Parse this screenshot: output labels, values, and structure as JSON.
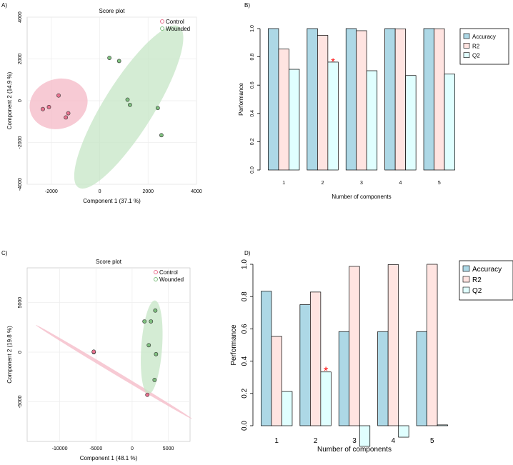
{
  "chart_data": [
    {
      "panel_label": "A)",
      "type": "scatter",
      "title": "Score plot",
      "xlabel": "Component 1 (37.1 %)",
      "ylabel": "Component 2 (14.9 %)",
      "xlim": [
        -3000,
        4000
      ],
      "ylim": [
        -4000,
        4000
      ],
      "xticks": [
        -2000,
        0,
        2000,
        4000
      ],
      "yticks": [
        -4000,
        -2000,
        0,
        2000,
        4000
      ],
      "x_tick_labels": [
        "-2000",
        "0",
        "2000",
        "4000"
      ],
      "y_tick_labels": [
        "-4000",
        "-2000",
        "0",
        "2000",
        "4000"
      ],
      "grid": true,
      "legend": "top-right",
      "series": [
        {
          "name": "Control",
          "color": "#e8728f",
          "fill": "#f4b8c6",
          "ellipse": {
            "cx": -1700,
            "cy": -150,
            "rx": 1300,
            "ry": 1100,
            "angle": -18
          },
          "points": [
            [
              -2350,
              -400
            ],
            [
              -2100,
              -300
            ],
            [
              -1700,
              250
            ],
            [
              -1300,
              -600
            ],
            [
              -1400,
              -800
            ]
          ]
        },
        {
          "name": "Wounded",
          "color": "#7fbf7f",
          "fill": "#c5e6c5",
          "ellipse": {
            "cx": 1200,
            "cy": -300,
            "rx": 4200,
            "ry": 1100,
            "angle": -58
          },
          "points": [
            [
              400,
              2050
            ],
            [
              800,
              1900
            ],
            [
              1150,
              50
            ],
            [
              1250,
              -200
            ],
            [
              2400,
              -350
            ],
            [
              2550,
              -1650
            ]
          ]
        }
      ]
    },
    {
      "panel_label": "B)",
      "type": "bar",
      "categories": [
        "1",
        "2",
        "3",
        "4",
        "5"
      ],
      "xlabel": "Number of components",
      "ylabel": "Performance",
      "ylim": [
        0,
        1
      ],
      "yticks": [
        0.0,
        0.2,
        0.4,
        0.6,
        0.8,
        1.0
      ],
      "y_tick_labels": [
        "0.0",
        "0.2",
        "0.4",
        "0.6",
        "0.8",
        "1.0"
      ],
      "legend": "top-right",
      "best_marker": {
        "category": "2",
        "series": "Q2",
        "symbol": "*",
        "color": "#ff0000"
      },
      "series": [
        {
          "name": "Accuracy",
          "color": "#add8e6",
          "values": [
            1.0,
            1.0,
            1.0,
            1.0,
            1.0
          ]
        },
        {
          "name": "R2",
          "color": "#ffe4e1",
          "values": [
            0.855,
            0.952,
            0.985,
            0.998,
            0.999
          ]
        },
        {
          "name": "Q2",
          "color": "#e0ffff",
          "values": [
            0.712,
            0.763,
            0.702,
            0.668,
            0.678
          ]
        }
      ]
    },
    {
      "panel_label": "C)",
      "type": "scatter",
      "title": "Score plot",
      "xlabel": "Component 1 (48.1 %)",
      "ylabel": "Component 2 (19.8 %)",
      "xlim": [
        -14500,
        8000
      ],
      "ylim": [
        -9000,
        8500
      ],
      "xticks": [
        -10000,
        -5000,
        0,
        5000
      ],
      "yticks": [
        -5000,
        0,
        5000
      ],
      "x_tick_labels": [
        "-10000",
        "-5000",
        "0",
        "5000"
      ],
      "y_tick_labels": [
        "-5000",
        "0",
        "5000"
      ],
      "grid": true,
      "legend": "top-right",
      "series": [
        {
          "name": "Control",
          "color": "#e8728f",
          "fill": "#f4b8c6",
          "ellipse": {
            "cx": -2500,
            "cy": -2000,
            "rx": 10500,
            "ry": 200,
            "angle": 31
          },
          "points": [
            [
              -5300,
              0
            ],
            [
              -5300,
              50
            ],
            [
              2100,
              -4300
            ]
          ]
        },
        {
          "name": "Wounded",
          "color": "#7fbf7f",
          "fill": "#c5e6c5",
          "ellipse": {
            "cx": 2700,
            "cy": 500,
            "rx": 5400,
            "ry": 1200,
            "angle": -86
          },
          "points": [
            [
              3200,
              4200
            ],
            [
              1700,
              3100
            ],
            [
              2600,
              3100
            ],
            [
              2300,
              700
            ],
            [
              3300,
              -200
            ],
            [
              3100,
              -2800
            ]
          ]
        }
      ]
    },
    {
      "panel_label": "D)",
      "type": "bar",
      "categories": [
        "1",
        "2",
        "3",
        "4",
        "5"
      ],
      "xlabel": "Number of components",
      "ylabel": "Performance",
      "ylim": [
        -0.1,
        1.0
      ],
      "yticks": [
        0.0,
        0.2,
        0.4,
        0.6,
        0.8,
        1.0
      ],
      "y_tick_labels": [
        "0.0",
        "0.2",
        "0.4",
        "0.6",
        "0.8",
        "1.0"
      ],
      "legend": "top-right",
      "best_marker": {
        "category": "2",
        "series": "Q2",
        "symbol": "*",
        "color": "#ff0000"
      },
      "series": [
        {
          "name": "Accuracy",
          "color": "#add8e6",
          "values": [
            0.833,
            0.75,
            0.583,
            0.583,
            0.583
          ]
        },
        {
          "name": "R2",
          "color": "#ffe4e1",
          "values": [
            0.553,
            0.828,
            0.987,
            0.998,
            1.0
          ]
        },
        {
          "name": "Q2",
          "color": "#e0ffff",
          "values": [
            0.212,
            0.333,
            -0.128,
            -0.071,
            0.005
          ]
        }
      ]
    }
  ]
}
